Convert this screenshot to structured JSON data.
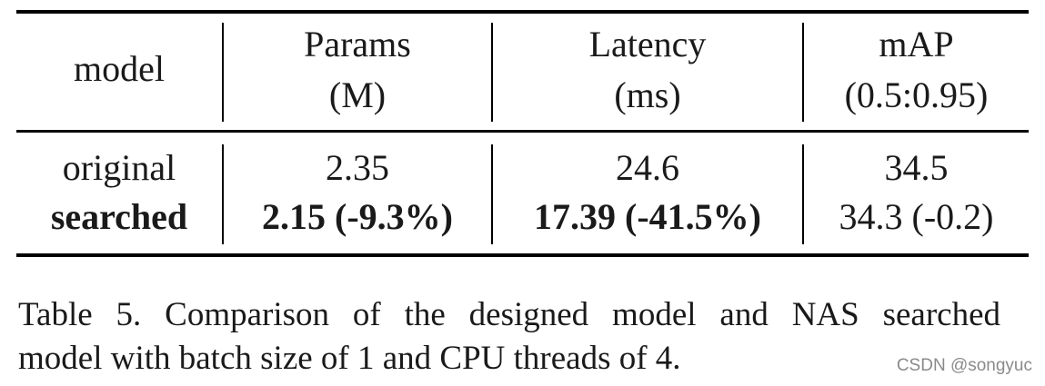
{
  "table": {
    "headers": {
      "model": "model",
      "params_line1": "Params",
      "params_line2": "(M)",
      "latency_line1": "Latency",
      "latency_line2": "(ms)",
      "map_line1": "mAP",
      "map_line2": "(0.5:0.95)"
    },
    "rows": [
      {
        "model": "original",
        "params": "2.35",
        "latency": "24.6",
        "map": "34.5"
      },
      {
        "model": "searched",
        "params": "2.15 (-9.3%)",
        "latency": "17.39 (-41.5%)",
        "map": "34.3 (-0.2)"
      }
    ]
  },
  "caption": {
    "line1": "Table 5. Comparison of the designed model and NAS searched",
    "line2": "model with batch size of 1 and CPU threads of 4."
  },
  "watermark": "CSDN @songyuc"
}
